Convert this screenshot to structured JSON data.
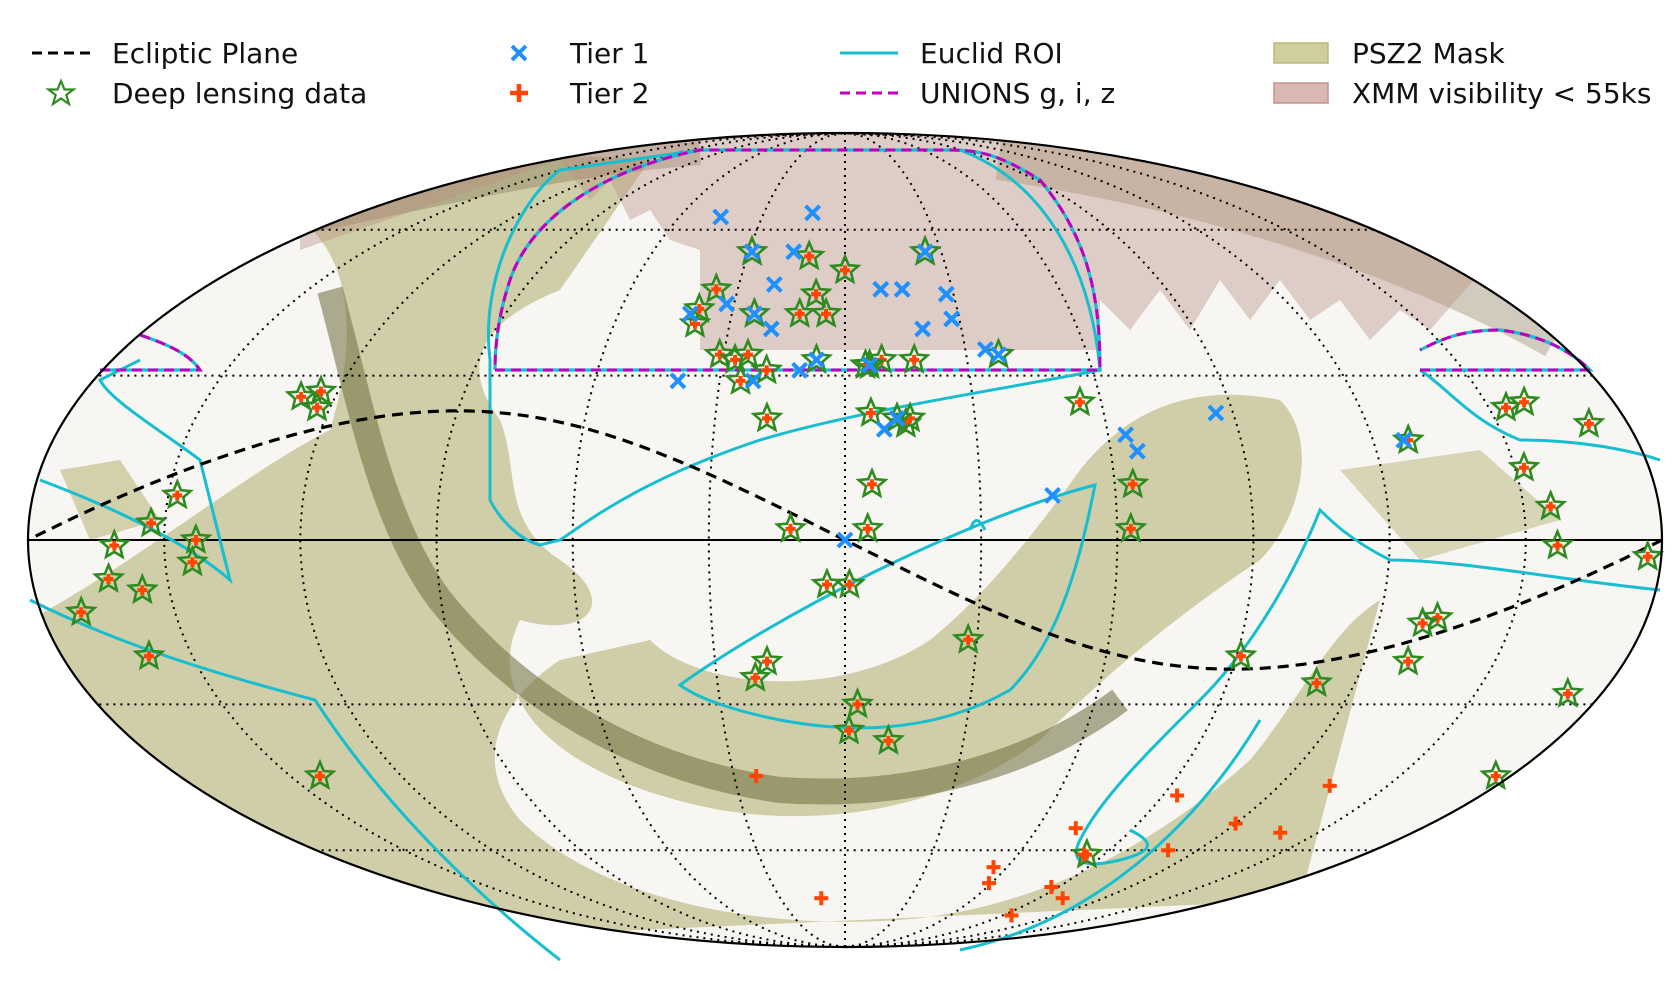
{
  "legend": {
    "ecliptic": "Ecliptic Plane",
    "deep": "Deep lensing data",
    "tier1": "Tier 1",
    "tier2": "Tier 2",
    "euclid": "Euclid ROI",
    "unions": "UNIONS g, i, z",
    "psz2": "PSZ2 Mask",
    "xmm": "XMM visibility < 55ks"
  },
  "colors": {
    "ecliptic": "#000000",
    "deep_edge": "#2e8b20",
    "tier1": "#1e90ff",
    "tier2": "#ff4500",
    "euclid": "#17becf",
    "unions": "#c000c0",
    "psz2": "#c8c89a",
    "xmm": "#d7b4ad"
  },
  "chart_data": {
    "type": "scatter",
    "projection": "mollweide",
    "graticule": {
      "lon_step_deg": 30,
      "lat_step_deg": 30,
      "style": "dotted"
    },
    "tier1": [
      [
        12,
        64
      ],
      [
        16,
        55
      ],
      [
        45,
        63
      ],
      [
        20,
        48
      ],
      [
        32,
        44
      ],
      [
        19,
        39
      ],
      [
        41,
        42
      ],
      [
        -10,
        47
      ],
      [
        -16,
        47
      ],
      [
        -28,
        41
      ],
      [
        -28,
        46
      ],
      [
        -20,
        39
      ],
      [
        22,
        29
      ],
      [
        11,
        31
      ],
      [
        0,
        0
      ],
      [
        -86,
        23
      ],
      [
        40,
        29
      ],
      [
        -9,
        20
      ],
      [
        -46,
        8
      ],
      [
        -64,
        19
      ],
      [
        -66,
        16
      ],
      [
        -127,
        18
      ],
      [
        -28,
        41
      ],
      [
        -35,
        35
      ]
    ],
    "tier2": [
      [
        -120,
        -54
      ],
      [
        -138,
        -56
      ],
      [
        -134,
        -46
      ],
      [
        24,
        -44
      ],
      [
        -59,
        -68
      ],
      [
        -87,
        -69
      ],
      [
        -83,
        -61
      ],
      [
        -110,
        -60
      ],
      [
        -94,
        -48
      ],
      [
        -101,
        -72
      ],
      [
        -72,
        -55
      ],
      [
        -95,
        -77
      ],
      [
        -55,
        -64
      ],
      [
        11,
        -72
      ]
    ],
    "tier1_deep": [
      [
        29,
        55
      ],
      [
        -25,
        55
      ],
      [
        24,
        42
      ],
      [
        7,
        33
      ],
      [
        -38,
        34
      ],
      [
        -12,
        22
      ],
      [
        -6,
        32
      ]
    ],
    "tier2_deep": [
      [
        36,
        47
      ],
      [
        39,
        43
      ],
      [
        39,
        40
      ],
      [
        -17,
        33
      ],
      [
        -9,
        33
      ],
      [
        12,
        42
      ],
      [
        11,
        54
      ],
      [
        0,
        51
      ],
      [
        31,
        34
      ],
      [
        27,
        33
      ],
      [
        24,
        34
      ],
      [
        25,
        29
      ],
      [
        8,
        46
      ],
      [
        5,
        42
      ],
      [
        -5,
        32
      ],
      [
        -6,
        23
      ],
      [
        -6,
        10
      ],
      [
        -5,
        2
      ],
      [
        19,
        31
      ],
      [
        18,
        22
      ],
      [
        12,
        2
      ],
      [
        4,
        -8
      ],
      [
        -14,
        21
      ],
      [
        -15,
        22
      ],
      [
        -64,
        10
      ],
      [
        -63,
        2
      ],
      [
        -55,
        25
      ],
      [
        -128,
        18
      ],
      [
        -154,
        24
      ],
      [
        -171,
        21
      ],
      [
        -159,
        25
      ],
      [
        -152,
        13
      ],
      [
        -177,
        -3
      ],
      [
        -133,
        -14
      ],
      [
        -130,
        -15
      ],
      [
        -130,
        -22
      ],
      [
        -111,
        -26
      ],
      [
        -156,
        6
      ],
      [
        -157,
        -1
      ],
      [
        -172,
        -28
      ],
      [
        -176,
        -44
      ],
      [
        -91,
        -21
      ],
      [
        -84,
        -61
      ],
      [
        -28,
        -18
      ],
      [
        -3,
        -30
      ],
      [
        128,
        26
      ],
      [
        123,
        24
      ],
      [
        124,
        27
      ],
      [
        148,
        8
      ],
      [
        143,
        0
      ],
      [
        144,
        -4
      ],
      [
        153,
        3
      ],
      [
        160,
        -21
      ],
      [
        -1,
        -8
      ],
      [
        161,
        -1
      ],
      [
        21,
        -25
      ],
      [
        18,
        -22
      ],
      [
        -1,
        -35
      ],
      [
        -11,
        -37
      ],
      [
        163,
        -7
      ],
      [
        156,
        -9
      ],
      [
        171,
        -13
      ],
      [
        142,
        -44
      ]
    ],
    "ecliptic_plane": [
      [
        -180,
        0
      ],
      [
        -150,
        -12
      ],
      [
        -120,
        -23
      ],
      [
        -90,
        -23.4
      ],
      [
        -60,
        -18
      ],
      [
        -30,
        -9
      ],
      [
        0,
        0
      ],
      [
        30,
        9
      ],
      [
        60,
        18
      ],
      [
        90,
        23.4
      ],
      [
        120,
        23
      ],
      [
        150,
        12
      ],
      [
        180,
        0
      ]
    ]
  }
}
